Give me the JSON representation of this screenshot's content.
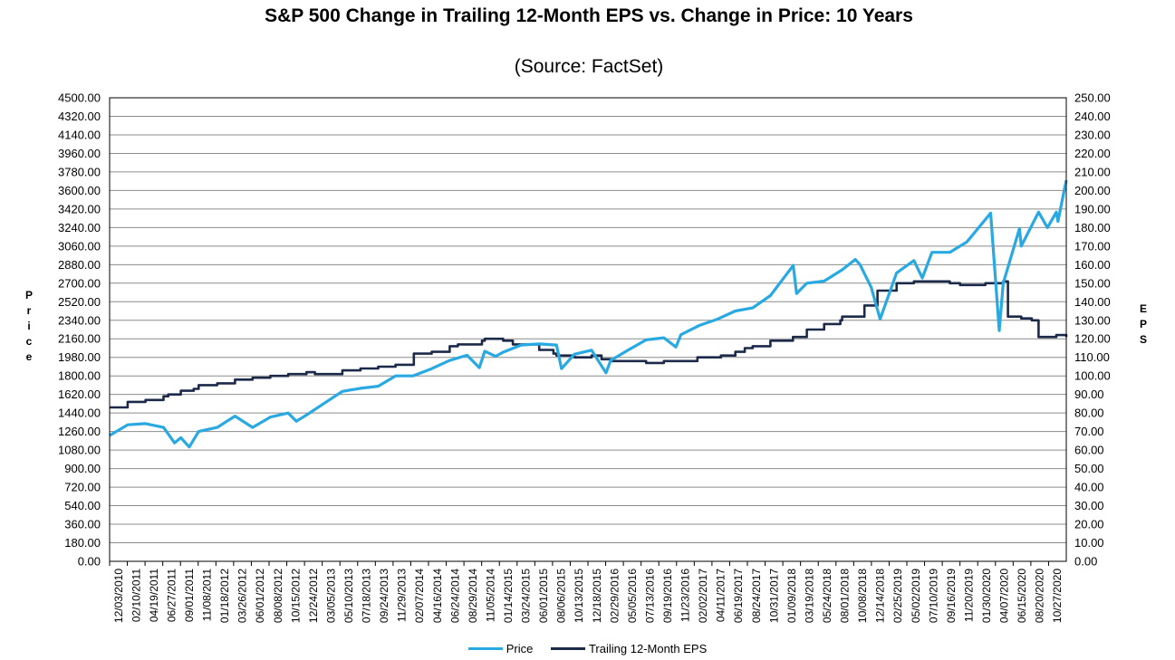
{
  "chart_data": {
    "type": "line",
    "title": "S&P 500 Change in Trailing 12-Month EPS vs. Change in Price: 10 Years",
    "subtitle": "(Source: FactSet)",
    "ylabel_left": "Price",
    "ylabel_right": "EPS",
    "ylim_left": [
      0,
      4500
    ],
    "ylim_right": [
      0,
      250
    ],
    "y_ticks_left": [
      "0.00",
      "180.00",
      "360.00",
      "540.00",
      "720.00",
      "900.00",
      "1080.00",
      "1260.00",
      "1440.00",
      "1620.00",
      "1800.00",
      "1980.00",
      "2160.00",
      "2340.00",
      "2520.00",
      "2700.00",
      "2880.00",
      "3060.00",
      "3240.00",
      "3420.00",
      "3600.00",
      "3780.00",
      "3960.00",
      "4140.00",
      "4320.00",
      "4500.00"
    ],
    "y_ticks_right": [
      "0.00",
      "10.00",
      "20.00",
      "30.00",
      "40.00",
      "50.00",
      "60.00",
      "70.00",
      "80.00",
      "90.00",
      "100.00",
      "110.00",
      "120.00",
      "130.00",
      "140.00",
      "150.00",
      "160.00",
      "170.00",
      "180.00",
      "190.00",
      "200.00",
      "210.00",
      "220.00",
      "230.00",
      "240.00",
      "250.00"
    ],
    "x_ticks": [
      "12/03/2010",
      "02/10/2011",
      "04/19/2011",
      "06/27/2011",
      "09/01/2011",
      "11/08/2011",
      "01/18/2012",
      "03/26/2012",
      "06/01/2012",
      "08/08/2012",
      "10/15/2012",
      "12/24/2012",
      "03/05/2013",
      "05/10/2013",
      "07/18/2013",
      "09/24/2013",
      "11/29/2013",
      "02/07/2014",
      "04/16/2014",
      "06/24/2014",
      "08/29/2014",
      "11/05/2014",
      "01/14/2015",
      "03/24/2015",
      "06/01/2015",
      "08/06/2015",
      "10/13/2015",
      "12/18/2015",
      "02/29/2016",
      "05/05/2016",
      "07/13/2016",
      "09/19/2016",
      "11/23/2016",
      "02/02/2017",
      "04/11/2017",
      "06/19/2017",
      "08/24/2017",
      "10/31/2017",
      "01/09/2018",
      "03/19/2018",
      "05/24/2018",
      "08/01/2018",
      "10/08/2018",
      "12/14/2018",
      "02/25/2019",
      "05/02/2019",
      "07/10/2019",
      "09/16/2019",
      "11/20/2019",
      "01/30/2020",
      "04/07/2020",
      "06/15/2020",
      "08/20/2020",
      "10/27/2020"
    ],
    "grid": true,
    "legend_position": "bottom",
    "series": [
      {
        "name": "Price",
        "axis": "left",
        "color": "#29a9e1",
        "x": [
          "12/03/2010",
          "02/10/2011",
          "04/19/2011",
          "06/27/2011",
          "08/08/2011",
          "09/01/2011",
          "10/03/2011",
          "11/08/2011",
          "01/18/2012",
          "03/26/2012",
          "06/01/2012",
          "08/08/2012",
          "10/15/2012",
          "11/15/2012",
          "12/24/2012",
          "03/05/2013",
          "05/10/2013",
          "07/18/2013",
          "09/24/2013",
          "11/29/2013",
          "02/03/2014",
          "04/16/2014",
          "06/24/2014",
          "08/29/2014",
          "10/15/2014",
          "11/05/2014",
          "12/16/2014",
          "01/14/2015",
          "03/24/2015",
          "06/01/2015",
          "08/06/2015",
          "08/25/2015",
          "10/13/2015",
          "12/18/2015",
          "02/11/2016",
          "02/29/2016",
          "05/05/2016",
          "07/13/2016",
          "09/19/2016",
          "11/04/2016",
          "11/23/2016",
          "02/02/2017",
          "04/11/2017",
          "06/19/2017",
          "08/24/2017",
          "10/31/2017",
          "01/26/2018",
          "02/08/2018",
          "03/19/2018",
          "05/24/2018",
          "08/01/2018",
          "09/20/2018",
          "10/08/2018",
          "11/20/2018",
          "12/24/2018",
          "02/25/2019",
          "05/02/2019",
          "06/03/2019",
          "07/10/2019",
          "09/16/2019",
          "11/20/2019",
          "02/19/2020",
          "03/23/2020",
          "04/07/2020",
          "06/08/2020",
          "06/15/2020",
          "08/20/2020",
          "09/23/2020",
          "10/27/2020",
          "11/02/2020",
          "12/04/2020"
        ],
        "y": [
          1222,
          1325,
          1337,
          1300,
          1150,
          1200,
          1110,
          1260,
          1300,
          1410,
          1300,
          1400,
          1440,
          1360,
          1420,
          1540,
          1650,
          1680,
          1700,
          1800,
          1800,
          1870,
          1950,
          2000,
          1880,
          2040,
          1990,
          2030,
          2100,
          2110,
          2100,
          1870,
          2010,
          2050,
          1830,
          1950,
          2050,
          2150,
          2170,
          2080,
          2200,
          2290,
          2350,
          2430,
          2460,
          2580,
          2872,
          2600,
          2700,
          2720,
          2830,
          2930,
          2880,
          2660,
          2351,
          2800,
          2920,
          2750,
          3000,
          3000,
          3100,
          3380,
          2240,
          2700,
          3230,
          3060,
          3390,
          3240,
          3390,
          3300,
          3700
        ]
      },
      {
        "name": "Trailing 12-Month EPS",
        "axis": "right",
        "color": "#1c2a4a",
        "x": [
          "12/03/2010",
          "01/18/2011",
          "02/10/2011",
          "04/19/2011",
          "06/27/2011",
          "07/15/2011",
          "09/01/2011",
          "10/20/2011",
          "11/08/2011",
          "01/18/2012",
          "03/26/2012",
          "06/01/2012",
          "08/08/2012",
          "10/15/2012",
          "12/24/2012",
          "01/25/2013",
          "03/05/2013",
          "05/10/2013",
          "07/18/2013",
          "09/24/2013",
          "11/29/2013",
          "01/25/2014",
          "02/07/2014",
          "04/16/2014",
          "06/24/2014",
          "07/25/2014",
          "08/29/2014",
          "10/25/2014",
          "11/05/2014",
          "01/14/2015",
          "02/20/2015",
          "03/24/2015",
          "06/01/2015",
          "07/25/2015",
          "08/06/2015",
          "10/13/2015",
          "12/18/2015",
          "01/25/2016",
          "02/29/2016",
          "05/05/2016",
          "07/13/2016",
          "09/19/2016",
          "11/23/2016",
          "01/25/2017",
          "02/02/2017",
          "04/25/2017",
          "06/19/2017",
          "07/25/2017",
          "08/24/2017",
          "10/31/2017",
          "01/25/2018",
          "03/19/2018",
          "05/24/2018",
          "07/25/2018",
          "08/01/2018",
          "10/25/2018",
          "12/14/2018",
          "01/25/2019",
          "02/25/2019",
          "05/02/2019",
          "07/10/2019",
          "09/16/2019",
          "10/25/2019",
          "11/20/2019",
          "01/30/2020",
          "03/25/2020",
          "04/07/2020",
          "04/25/2020",
          "06/15/2020",
          "07/25/2020",
          "08/20/2020",
          "10/27/2020",
          "11/02/2020",
          "12/04/2020"
        ],
        "y": [
          83,
          83,
          86,
          87,
          89,
          90,
          92,
          93,
          95,
          96,
          98,
          99,
          100,
          101,
          102,
          101,
          101,
          103,
          104,
          105,
          106,
          106,
          112,
          113,
          116,
          117,
          117,
          119,
          120,
          119,
          117,
          117,
          114,
          112,
          111,
          110,
          111,
          109,
          108,
          108,
          107,
          108,
          108,
          110,
          110,
          111,
          113,
          115,
          116,
          119,
          121,
          125,
          128,
          130,
          132,
          138,
          146,
          146,
          150,
          151,
          151,
          150,
          149,
          149,
          150,
          150,
          151,
          132,
          131,
          130,
          121,
          122,
          122,
          121
        ]
      }
    ]
  }
}
